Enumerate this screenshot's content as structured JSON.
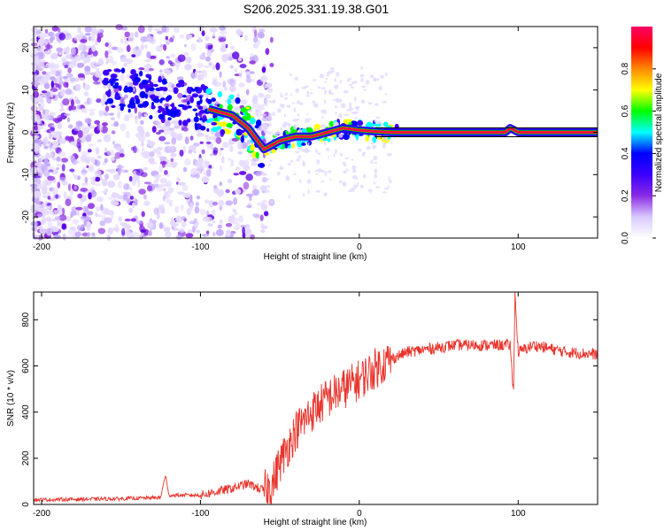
{
  "title": "S206.2025.331.19.38.G01",
  "chart_data": [
    {
      "type": "heatmap",
      "panel": "spectrogram",
      "xlabel": "Height of straight line (km)",
      "ylabel": "Frequency (Hz)",
      "xlim": [
        -205,
        150
      ],
      "ylim": [
        -25,
        25
      ],
      "xticks": [
        -200,
        -100,
        0,
        100
      ],
      "yticks": [
        -20,
        -10,
        0,
        10,
        20
      ],
      "colorbar": {
        "label": "Normalized spectral amplitude",
        "range": [
          0,
          1
        ],
        "ticks": [
          0.0,
          0.2,
          0.4,
          0.6,
          0.8
        ],
        "colors": [
          "#ffffff",
          "#d9c9ff",
          "#8a2be2",
          "#3b00ff",
          "#0000ff",
          "#00ffff",
          "#00ff00",
          "#ffff00",
          "#ff8800",
          "#ff0000",
          "#ff0066"
        ]
      },
      "ridge": {
        "x": [
          -100,
          -90,
          -80,
          -70,
          -60,
          -50,
          -40,
          -30,
          -20,
          -10,
          0,
          10,
          20,
          50,
          92,
          95,
          100,
          150
        ],
        "freq": [
          6,
          5,
          4,
          1,
          -4,
          -2,
          -1,
          -1,
          0,
          1,
          0.5,
          0.2,
          0,
          0,
          0,
          1,
          0,
          0
        ]
      }
    },
    {
      "type": "line",
      "panel": "snr",
      "xlabel": "Height of straight line (km)",
      "ylabel": "SNR (10 * v/v)",
      "xlim": [
        -205,
        150
      ],
      "ylim": [
        0,
        920
      ],
      "xticks": [
        -200,
        -100,
        0,
        100
      ],
      "yticks": [
        0,
        200,
        400,
        600,
        800
      ],
      "series": [
        {
          "name": "SNR",
          "color": "#e8342c",
          "x": [
            -205,
            -150,
            -125,
            -122,
            -120,
            -100,
            -80,
            -70,
            -60,
            -55,
            -50,
            -40,
            -30,
            -20,
            -10,
            0,
            10,
            20,
            30,
            40,
            50,
            60,
            80,
            95,
            97,
            98,
            100,
            110,
            130,
            150
          ],
          "values": [
            20,
            25,
            30,
            130,
            40,
            40,
            70,
            90,
            60,
            80,
            180,
            320,
            400,
            460,
            500,
            540,
            590,
            630,
            660,
            670,
            680,
            690,
            690,
            690,
            480,
            910,
            660,
            690,
            660,
            650
          ]
        }
      ]
    }
  ]
}
